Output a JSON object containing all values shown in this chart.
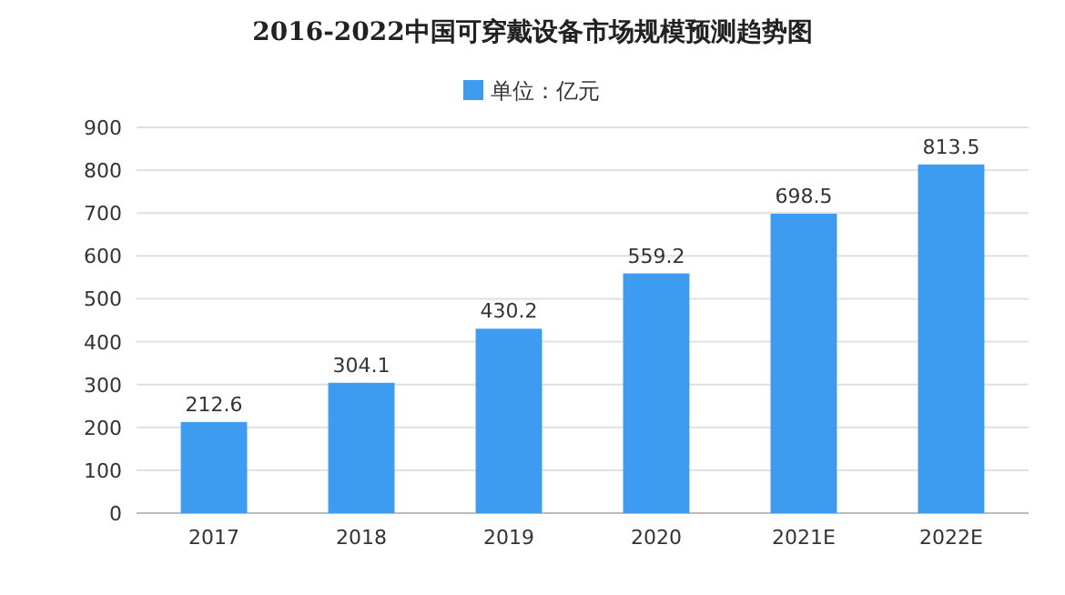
{
  "chart_data": {
    "type": "bar",
    "title": "2016-2022中国可穿戴设备市场规模预测趋势图",
    "categories": [
      "2017",
      "2018",
      "2019",
      "2020",
      "2021E",
      "2022E"
    ],
    "series": [
      {
        "name": "单位：亿元",
        "color": "#3d9cf0",
        "values": [
          212.6,
          304.1,
          430.2,
          559.2,
          698.5,
          813.5
        ]
      }
    ],
    "ylim": [
      0,
      900
    ],
    "yticks": [
      0,
      100,
      200,
      300,
      400,
      500,
      600,
      700,
      800,
      900
    ],
    "grid": "y",
    "legend": "top",
    "data_labels": true
  }
}
